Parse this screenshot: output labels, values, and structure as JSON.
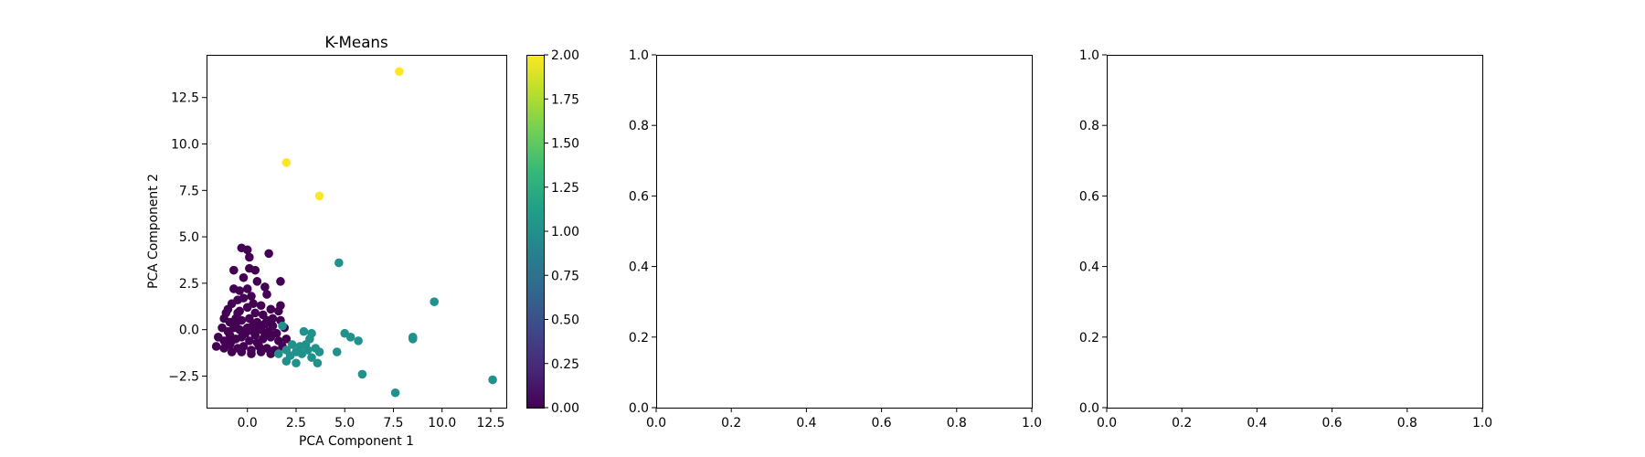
{
  "chart_data": [
    {
      "type": "scatter",
      "title": "K-Means",
      "xlabel": "PCA Component 1",
      "ylabel": "PCA Component 2",
      "xlim": [
        -2.1,
        13.3
      ],
      "ylim": [
        -4.2,
        14.8
      ],
      "xticks": [
        0.0,
        2.5,
        5.0,
        7.5,
        10.0,
        12.5
      ],
      "xtick_labels": [
        "0.0",
        "2.5",
        "5.0",
        "7.5",
        "10.0",
        "12.5"
      ],
      "yticks": [
        -2.5,
        0.0,
        2.5,
        5.0,
        7.5,
        10.0,
        12.5
      ],
      "ytick_labels": [
        "−2.5",
        "0.0",
        "2.5",
        "5.0",
        "7.5",
        "10.0",
        "12.5"
      ],
      "grid": false,
      "colormap": "viridis",
      "colorbar": {
        "range": [
          0.0,
          2.0
        ],
        "ticks": [
          0.0,
          0.25,
          0.5,
          0.75,
          1.0,
          1.25,
          1.5,
          1.75,
          2.0
        ],
        "tick_labels": [
          "0.00",
          "0.25",
          "0.50",
          "0.75",
          "1.00",
          "1.25",
          "1.50",
          "1.75",
          "2.00"
        ],
        "colors": [
          "#440154",
          "#482878",
          "#3e4989",
          "#31688e",
          "#26828e",
          "#1f9e89",
          "#35b779",
          "#6ece58",
          "#b5de2b",
          "#fde725"
        ]
      },
      "cluster_colors": [
        "#440154",
        "#21918c",
        "#fde725"
      ],
      "series": [
        {
          "cluster": 0,
          "points": [
            [
              -0.3,
              4.4
            ],
            [
              0.0,
              4.3
            ],
            [
              1.1,
              4.1
            ],
            [
              0.1,
              3.9
            ],
            [
              -0.7,
              3.2
            ],
            [
              0.1,
              3.3
            ],
            [
              0.4,
              3.2
            ],
            [
              -0.2,
              2.8
            ],
            [
              1.7,
              2.6
            ],
            [
              0.5,
              2.6
            ],
            [
              0.9,
              2.3
            ],
            [
              -0.7,
              2.2
            ],
            [
              -0.4,
              2.1
            ],
            [
              0.0,
              2.2
            ],
            [
              0.2,
              1.8
            ],
            [
              1.0,
              1.9
            ],
            [
              1.7,
              1.3
            ],
            [
              1.6,
              1.0
            ],
            [
              -0.5,
              1.6
            ],
            [
              -0.2,
              1.7
            ],
            [
              0.3,
              1.4
            ],
            [
              0.7,
              1.3
            ],
            [
              1.2,
              1.1
            ],
            [
              -1.0,
              1.1
            ],
            [
              -0.8,
              1.4
            ],
            [
              -0.5,
              0.9
            ],
            [
              0.0,
              1.2
            ],
            [
              0.4,
              0.9
            ],
            [
              0.8,
              0.8
            ],
            [
              1.3,
              0.6
            ],
            [
              1.7,
              0.5
            ],
            [
              -1.2,
              0.6
            ],
            [
              -0.9,
              0.4
            ],
            [
              -0.6,
              0.6
            ],
            [
              -0.3,
              0.5
            ],
            [
              0.1,
              0.6
            ],
            [
              0.5,
              0.4
            ],
            [
              0.9,
              0.3
            ],
            [
              1.3,
              0.2
            ],
            [
              1.9,
              0.1
            ],
            [
              -1.3,
              0.1
            ],
            [
              -1.0,
              -0.1
            ],
            [
              -0.7,
              0.1
            ],
            [
              -0.4,
              0.0
            ],
            [
              0.0,
              0.1
            ],
            [
              0.3,
              -0.1
            ],
            [
              0.7,
              0.0
            ],
            [
              1.1,
              -0.1
            ],
            [
              1.5,
              -0.2
            ],
            [
              -1.5,
              -0.4
            ],
            [
              -1.2,
              -0.6
            ],
            [
              -0.9,
              -0.3
            ],
            [
              -0.6,
              -0.5
            ],
            [
              -0.3,
              -0.4
            ],
            [
              0.1,
              -0.6
            ],
            [
              0.4,
              -0.3
            ],
            [
              0.8,
              -0.5
            ],
            [
              1.2,
              -0.4
            ],
            [
              1.6,
              -0.6
            ],
            [
              2.0,
              -0.5
            ],
            [
              -1.6,
              -0.9
            ],
            [
              -1.2,
              -1.0
            ],
            [
              -0.9,
              -0.8
            ],
            [
              -0.5,
              -1.0
            ],
            [
              -0.2,
              -0.9
            ],
            [
              0.2,
              -1.1
            ],
            [
              0.6,
              -0.9
            ],
            [
              1.0,
              -1.0
            ],
            [
              1.4,
              -1.1
            ],
            [
              1.8,
              -0.9
            ],
            [
              -0.8,
              -1.2
            ],
            [
              -0.3,
              -1.2
            ],
            [
              0.2,
              -1.3
            ],
            [
              0.7,
              -1.2
            ],
            [
              1.2,
              -1.3
            ],
            [
              -1.1,
              0.9
            ],
            [
              -0.4,
              1.0
            ],
            [
              0.6,
              0.2
            ],
            [
              -0.8,
              -0.6
            ],
            [
              0.5,
              -0.7
            ],
            [
              1.0,
              0.5
            ],
            [
              -0.1,
              -0.2
            ],
            [
              0.3,
              0.3
            ],
            [
              -0.6,
              0.3
            ],
            [
              0.9,
              -0.3
            ]
          ]
        },
        {
          "cluster": 1,
          "points": [
            [
              4.7,
              3.6
            ],
            [
              9.6,
              1.5
            ],
            [
              1.8,
              0.2
            ],
            [
              2.9,
              -0.1
            ],
            [
              3.3,
              -0.2
            ],
            [
              5.0,
              -0.2
            ],
            [
              5.3,
              -0.4
            ],
            [
              3.2,
              -0.5
            ],
            [
              8.5,
              -0.4
            ],
            [
              8.5,
              -0.5
            ],
            [
              5.7,
              -0.6
            ],
            [
              2.3,
              -0.8
            ],
            [
              2.7,
              -0.9
            ],
            [
              3.0,
              -0.8
            ],
            [
              3.5,
              -1.0
            ],
            [
              2.0,
              -1.1
            ],
            [
              2.5,
              -1.2
            ],
            [
              3.1,
              -1.1
            ],
            [
              3.7,
              -1.2
            ],
            [
              4.6,
              -1.2
            ],
            [
              1.6,
              -1.3
            ],
            [
              2.2,
              -1.4
            ],
            [
              2.8,
              -1.3
            ],
            [
              3.3,
              -1.5
            ],
            [
              2.0,
              -1.7
            ],
            [
              2.5,
              -1.8
            ],
            [
              3.6,
              -1.8
            ],
            [
              5.9,
              -2.4
            ],
            [
              12.6,
              -2.7
            ],
            [
              7.6,
              -3.4
            ]
          ]
        },
        {
          "cluster": 2,
          "points": [
            [
              7.8,
              13.9
            ],
            [
              2.0,
              9.0
            ],
            [
              3.7,
              7.2
            ]
          ]
        }
      ]
    },
    {
      "type": "scatter",
      "title": "",
      "xlim": [
        0.0,
        1.0
      ],
      "ylim": [
        0.0,
        1.0
      ],
      "xticks": [
        0.0,
        0.2,
        0.4,
        0.6,
        0.8,
        1.0
      ],
      "xtick_labels": [
        "0.0",
        "0.2",
        "0.4",
        "0.6",
        "0.8",
        "1.0"
      ],
      "yticks": [
        0.0,
        0.2,
        0.4,
        0.6,
        0.8,
        1.0
      ],
      "ytick_labels": [
        "0.0",
        "0.2",
        "0.4",
        "0.6",
        "0.8",
        "1.0"
      ],
      "series": []
    },
    {
      "type": "scatter",
      "title": "",
      "xlim": [
        0.0,
        1.0
      ],
      "ylim": [
        0.0,
        1.0
      ],
      "xticks": [
        0.0,
        0.2,
        0.4,
        0.6,
        0.8,
        1.0
      ],
      "xtick_labels": [
        "0.0",
        "0.2",
        "0.4",
        "0.6",
        "0.8",
        "1.0"
      ],
      "yticks": [
        0.0,
        0.2,
        0.4,
        0.6,
        0.8,
        1.0
      ],
      "ytick_labels": [
        "0.0",
        "0.2",
        "0.4",
        "0.6",
        "0.8",
        "1.0"
      ],
      "series": []
    }
  ]
}
